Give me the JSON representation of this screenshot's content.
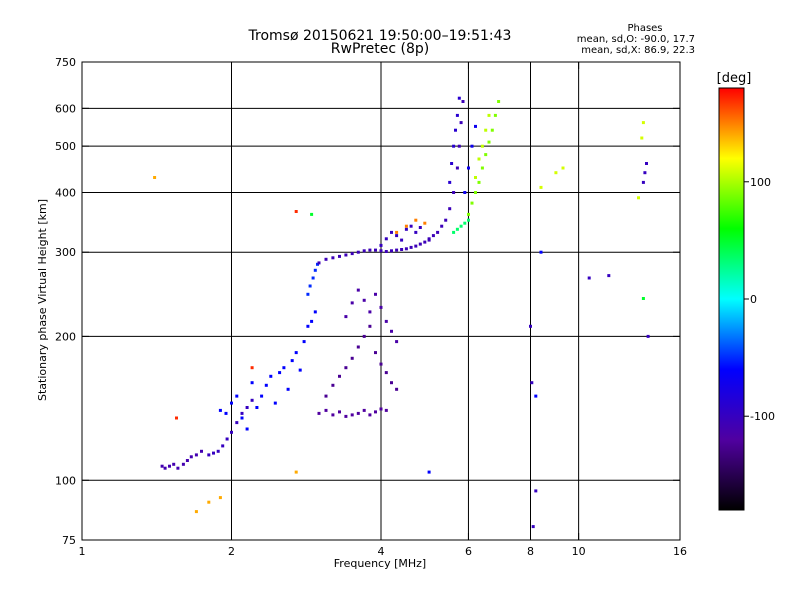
{
  "chart_data": {
    "type": "scatter",
    "title": "Tromsø 20150621 19:50:00–19:51:43",
    "subtitle": "RwPretec (8p)",
    "xlabel": "Frequency [MHz]",
    "ylabel": "Stationary phase Virtual Height [km]",
    "x_scale": "log2",
    "y_scale": "log",
    "xlim": [
      1,
      16
    ],
    "ylim": [
      75,
      750
    ],
    "x_ticks": [
      1,
      2,
      4,
      6,
      8,
      10,
      16
    ],
    "y_ticks": [
      75,
      100,
      200,
      300,
      400,
      500,
      600,
      750
    ],
    "x_grid": [
      2,
      4,
      6,
      8,
      10
    ],
    "y_grid": [
      100,
      200,
      300,
      400,
      500,
      600
    ],
    "grid": true,
    "phase_stats": {
      "title": "Phases",
      "line_o": "mean, sd,O: -90.0, 17.7",
      "line_x": "mean, sd,X:  86.9, 22.3"
    },
    "colorbar": {
      "label": "[deg]",
      "range": [
        -180,
        180
      ],
      "ticks": [
        100,
        0,
        -100
      ],
      "colors": [
        "#000000",
        "#5000a0",
        "#0000ff",
        "#00ffff",
        "#00ff00",
        "#ffff00",
        "#ff0000"
      ]
    },
    "series": [
      {
        "phase": -110,
        "x": [
          1.45,
          1.47,
          1.5,
          1.53,
          1.56,
          1.6,
          1.63,
          1.66,
          1.7,
          1.74
        ],
        "y": [
          107,
          106,
          107,
          108,
          106,
          108,
          110,
          112,
          113,
          115
        ]
      },
      {
        "phase": -100,
        "x": [
          1.8,
          1.84,
          1.88,
          1.92,
          1.96,
          2.0,
          2.05,
          2.1,
          2.15,
          2.2
        ],
        "y": [
          113,
          114,
          115,
          118,
          122,
          126,
          132,
          138,
          142,
          147
        ]
      },
      {
        "phase": -60,
        "x": [
          1.9,
          1.95,
          2.0,
          2.05,
          2.1,
          2.15,
          2.2,
          2.25,
          2.3,
          2.35,
          2.4,
          2.45,
          2.5,
          2.55,
          2.6,
          2.65,
          2.7,
          2.75,
          2.8,
          2.85,
          2.9,
          2.95
        ],
        "y": [
          140,
          138,
          145,
          150,
          135,
          128,
          160,
          142,
          150,
          158,
          165,
          145,
          168,
          172,
          155,
          178,
          185,
          170,
          195,
          210,
          215,
          225
        ]
      },
      {
        "phase": -50,
        "x": [
          2.85,
          2.88,
          2.92,
          2.95,
          2.98
        ],
        "y": [
          245,
          255,
          265,
          275,
          283
        ]
      },
      {
        "phase": -105,
        "x": [
          3.0,
          3.1,
          3.2,
          3.3,
          3.4,
          3.5,
          3.6,
          3.7,
          3.8,
          3.9,
          4.0,
          4.1,
          4.2,
          4.3,
          4.4,
          4.5,
          4.6,
          4.7,
          4.8,
          4.9,
          5.0
        ],
        "y": [
          285,
          290,
          292,
          294,
          296,
          298,
          300,
          302,
          303,
          303,
          302,
          301,
          302,
          303,
          304,
          305,
          307,
          309,
          312,
          315,
          318
        ]
      },
      {
        "phase": -120,
        "x": [
          3.0,
          3.1,
          3.2,
          3.3,
          3.4,
          3.5,
          3.6,
          3.7,
          3.8,
          3.9,
          4.0,
          4.1
        ],
        "y": [
          138,
          140,
          137,
          139,
          136,
          137,
          138,
          140,
          137,
          139,
          141,
          140
        ]
      },
      {
        "phase": -125,
        "x": [
          3.1,
          3.2,
          3.3,
          3.4,
          3.5,
          3.6,
          3.7,
          3.8,
          3.9,
          4.0,
          4.1,
          4.2,
          4.3
        ],
        "y": [
          150,
          158,
          165,
          172,
          180,
          190,
          200,
          210,
          185,
          175,
          168,
          160,
          155
        ]
      },
      {
        "phase": -115,
        "x": [
          3.4,
          3.5,
          3.6,
          3.7,
          3.8,
          3.9,
          4.0,
          4.1,
          4.2,
          4.3
        ],
        "y": [
          220,
          235,
          250,
          238,
          225,
          245,
          230,
          215,
          205,
          195
        ]
      },
      {
        "phase": -100,
        "x": [
          4.0,
          4.1,
          4.2,
          4.3,
          4.4,
          4.5,
          4.6,
          4.7,
          4.8
        ],
        "y": [
          310,
          320,
          330,
          325,
          318,
          335,
          340,
          330,
          338
        ]
      },
      {
        "phase": -105,
        "x": [
          5.0,
          5.1,
          5.2,
          5.3,
          5.4,
          5.5,
          5.6,
          5.7,
          5.75,
          5.8,
          5.85
        ],
        "y": [
          320,
          325,
          330,
          340,
          350,
          370,
          400,
          450,
          500,
          560,
          620
        ]
      },
      {
        "phase": -90,
        "x": [
          5.5,
          5.55,
          5.6,
          5.65,
          5.7,
          5.75
        ],
        "y": [
          420,
          460,
          500,
          540,
          580,
          630
        ]
      },
      {
        "phase": 35,
        "x": [
          5.6,
          5.7,
          5.8,
          5.9,
          6.0
        ],
        "y": [
          330,
          335,
          340,
          345,
          350
        ]
      },
      {
        "phase": 90,
        "x": [
          6.0,
          6.1,
          6.2,
          6.3,
          6.4,
          6.5,
          6.6,
          6.7,
          6.8,
          6.9
        ],
        "y": [
          360,
          380,
          400,
          420,
          450,
          480,
          510,
          540,
          580,
          620
        ]
      },
      {
        "phase": 105,
        "x": [
          6.2,
          6.3,
          6.4,
          6.5,
          6.6
        ],
        "y": [
          430,
          470,
          500,
          540,
          580
        ]
      },
      {
        "phase": 150,
        "x": [
          4.3,
          4.5,
          4.7,
          4.9
        ],
        "y": [
          330,
          340,
          350,
          345
        ]
      },
      {
        "phase": -70,
        "x": [
          5.9,
          6.0,
          6.1,
          6.2
        ],
        "y": [
          400,
          450,
          500,
          550
        ]
      },
      {
        "phase": -100,
        "x": [
          8.0,
          8.05,
          8.1,
          8.2,
          10.5,
          11.5,
          13.5,
          13.6,
          13.7,
          13.8
        ],
        "y": [
          210,
          160,
          80,
          95,
          265,
          268,
          420,
          440,
          460,
          200
        ]
      },
      {
        "phase": -60,
        "x": [
          5.0,
          8.2,
          8.4
        ],
        "y": [
          104,
          150,
          300
        ]
      },
      {
        "phase": 110,
        "x": [
          8.4,
          9.3,
          9.0,
          13.2,
          13.4,
          13.5
        ],
        "y": [
          410,
          450,
          440,
          390,
          520,
          560
        ]
      },
      {
        "phase": 140,
        "x": [
          1.4,
          1.7,
          1.8,
          1.9,
          2.7
        ],
        "y": [
          430,
          86,
          90,
          92,
          104
        ]
      },
      {
        "phase": 170,
        "x": [
          1.55,
          2.2,
          2.7
        ],
        "y": [
          135,
          172,
          365
        ]
      },
      {
        "phase": 50,
        "x": [
          2.9,
          13.5
        ],
        "y": [
          360,
          240
        ]
      }
    ]
  }
}
